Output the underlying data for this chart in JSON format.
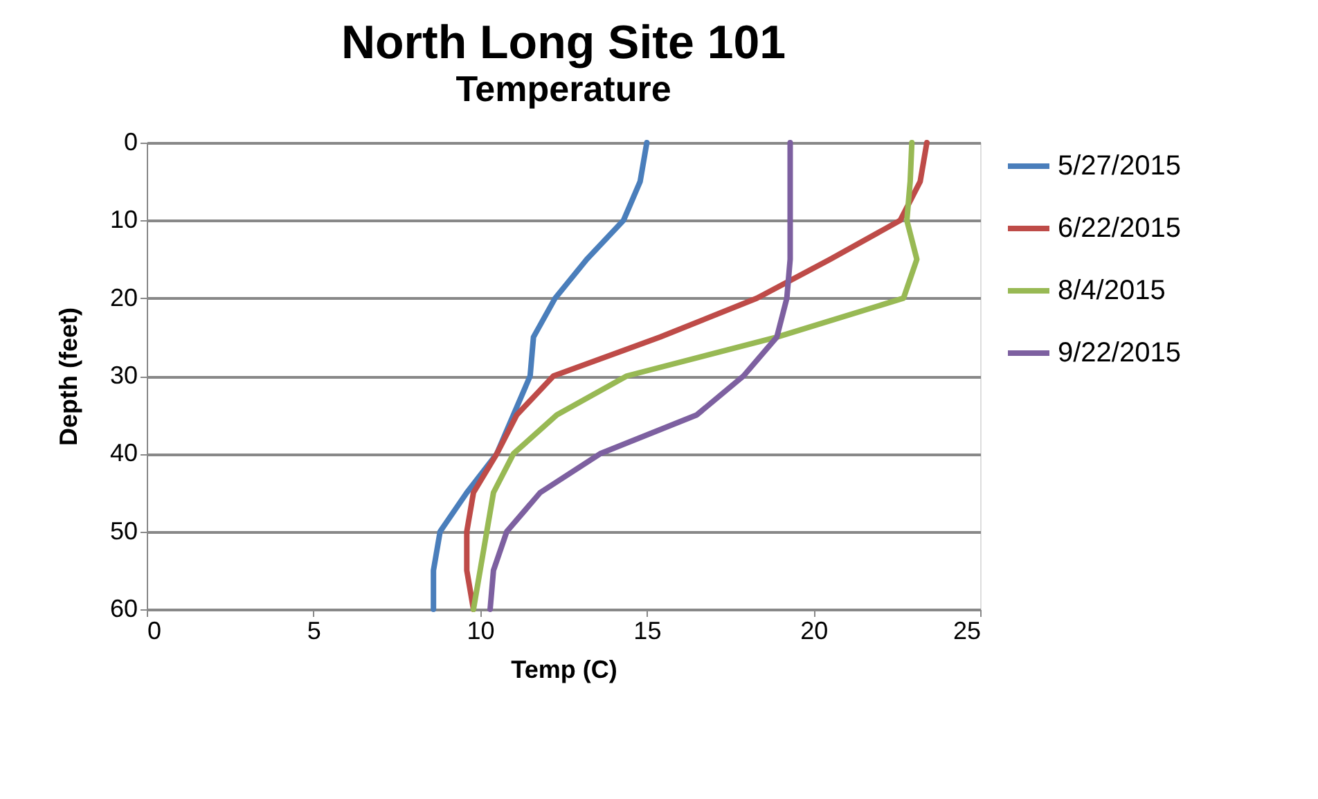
{
  "chart_data": {
    "type": "line",
    "title": "North Long Site 101",
    "subtitle": "Temperature",
    "xlabel": "Temp (C)",
    "ylabel": "Depth (feet)",
    "xlim": [
      0,
      25
    ],
    "xticks": [
      0,
      5,
      10,
      15,
      20,
      25
    ],
    "ylim": [
      60,
      0
    ],
    "yticks": [
      0,
      10,
      20,
      30,
      40,
      50,
      60
    ],
    "grid": "y",
    "legend": "right",
    "marker": "none",
    "line_style": "solid",
    "series": [
      {
        "name": "5/27/2015",
        "color": "#4a7ebb",
        "x": [
          15.0,
          14.8,
          14.3,
          13.2,
          12.25,
          11.6,
          11.5,
          11.0,
          10.5,
          9.6,
          8.8,
          8.6,
          8.6
        ],
        "values": [
          0,
          5,
          10,
          15,
          20,
          25,
          30,
          35,
          40,
          45,
          50,
          55,
          60
        ]
      },
      {
        "name": "6/22/2015",
        "color": "#be4b48",
        "x": [
          23.4,
          23.2,
          22.6,
          20.5,
          18.3,
          15.4,
          12.2,
          11.1,
          10.5,
          9.8,
          9.6,
          9.6,
          9.8
        ],
        "values": [
          0,
          5,
          10,
          15,
          20,
          25,
          30,
          35,
          40,
          45,
          50,
          55,
          60
        ]
      },
      {
        "name": "8/4/2015",
        "color": "#98b954",
        "x": [
          22.95,
          22.9,
          22.8,
          23.1,
          22.7,
          18.9,
          14.4,
          12.3,
          11.0,
          10.4,
          10.2,
          10.0,
          9.8
        ],
        "values": [
          0,
          5,
          10,
          15,
          20,
          25,
          30,
          35,
          40,
          45,
          50,
          55,
          60
        ]
      },
      {
        "name": "9/22/2015",
        "color": "#7d60a0",
        "x": [
          19.3,
          19.3,
          19.3,
          19.3,
          19.2,
          18.9,
          17.9,
          16.5,
          13.6,
          11.8,
          10.8,
          10.4,
          10.3
        ],
        "values": [
          0,
          5,
          10,
          15,
          20,
          25,
          30,
          35,
          40,
          45,
          50,
          55,
          60
        ]
      }
    ]
  }
}
